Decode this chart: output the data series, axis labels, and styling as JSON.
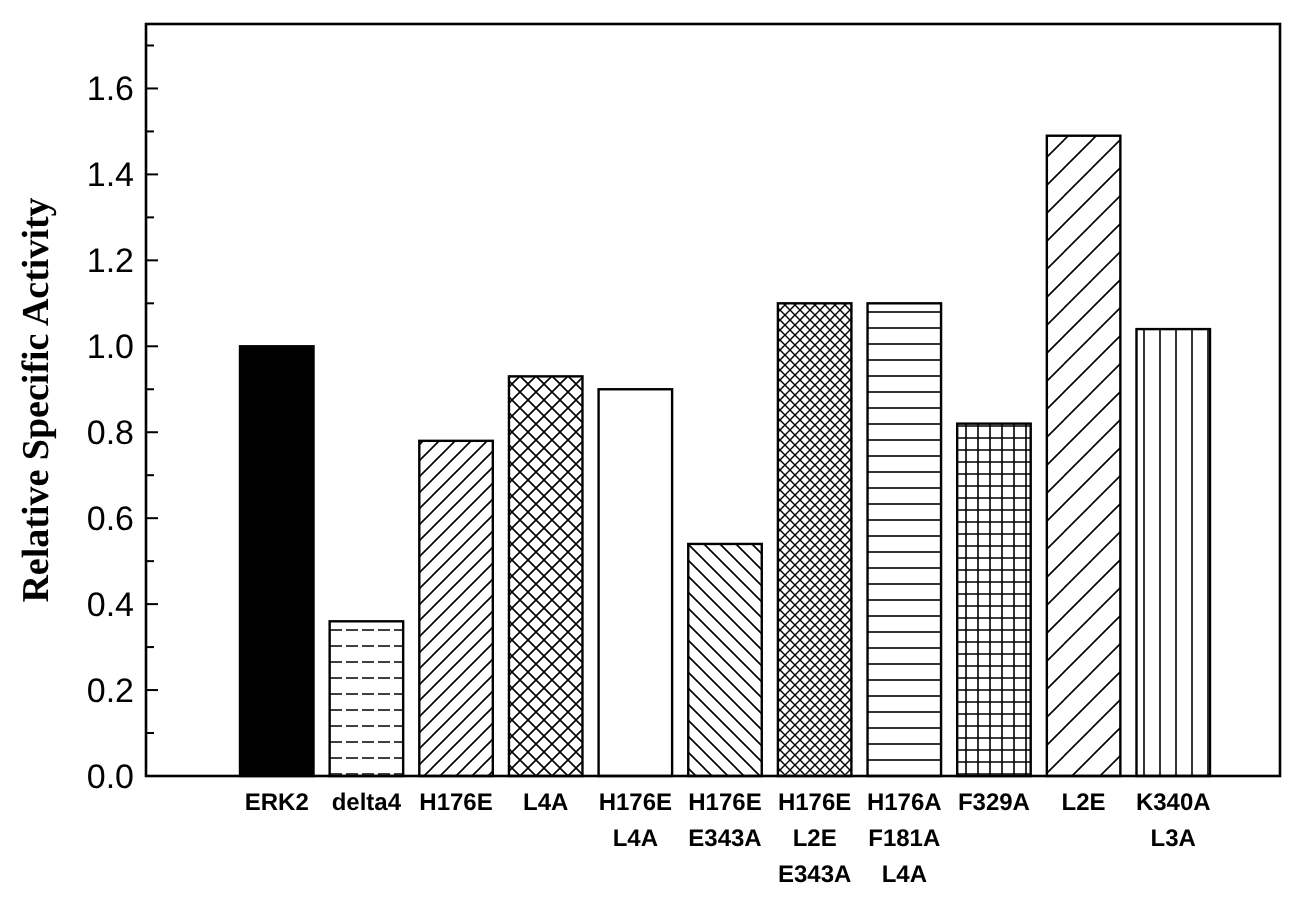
{
  "chart_data": {
    "type": "bar",
    "ylabel": "Relative Specific Activity",
    "categories": [
      "ERK2",
      "delta4",
      "H176E",
      "L4A",
      "H176E L4A",
      "H176E E343A",
      "H176E L2E E343A",
      "H176A F181A L4A",
      "F329A",
      "L2E",
      "K340A L3A"
    ],
    "values": [
      1.0,
      0.36,
      0.78,
      0.93,
      0.9,
      0.54,
      1.1,
      1.1,
      0.82,
      1.49,
      1.04
    ],
    "color": "#000000",
    "ylim": [
      0,
      1.75
    ],
    "yticks": [
      {
        "value": 0,
        "label": "0.0"
      },
      {
        "value": 0.2,
        "label": "0.2"
      },
      {
        "value": 0.4,
        "label": "0.4"
      },
      {
        "value": 0.6,
        "label": "0.6"
      },
      {
        "value": 0.8,
        "label": "0.8"
      },
      {
        "value": 1.0,
        "label": "1.0"
      },
      {
        "value": 1.2,
        "label": "1.2"
      },
      {
        "value": 1.4,
        "label": "1.4"
      },
      {
        "value": 1.6,
        "label": "1.6"
      }
    ],
    "grid": false
  }
}
